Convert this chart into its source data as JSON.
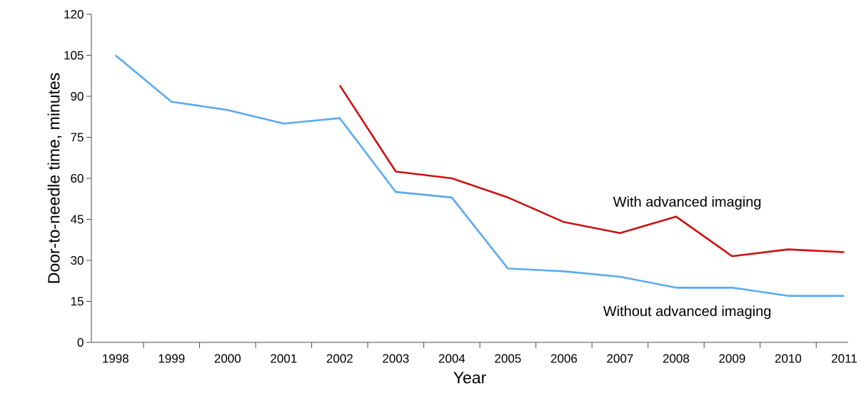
{
  "chart_data": {
    "type": "line",
    "xlabel": "Year",
    "ylabel": "Door-to-needle time, minutes",
    "categories": [
      "1998",
      "1999",
      "2000",
      "2001",
      "2002",
      "2003",
      "2004",
      "2005",
      "2006",
      "2007",
      "2008",
      "2009",
      "2010",
      "2011"
    ],
    "series": [
      {
        "name": "Without advanced imaging",
        "color": "#5aaaee",
        "values": [
          105,
          88,
          85,
          80,
          82,
          55,
          53,
          27,
          26,
          24,
          20,
          20,
          17,
          17
        ]
      },
      {
        "name": "With advanced imaging",
        "color": "#cc1111",
        "values": [
          null,
          null,
          null,
          null,
          94,
          62.5,
          60,
          53,
          44,
          40,
          46,
          31.5,
          34,
          33
        ]
      }
    ],
    "ylim": [
      0,
      120
    ],
    "yticks": [
      0,
      15,
      30,
      45,
      60,
      75,
      90,
      105,
      120
    ],
    "grid": false,
    "legend": false,
    "marker": "none",
    "line_style": "solid"
  }
}
